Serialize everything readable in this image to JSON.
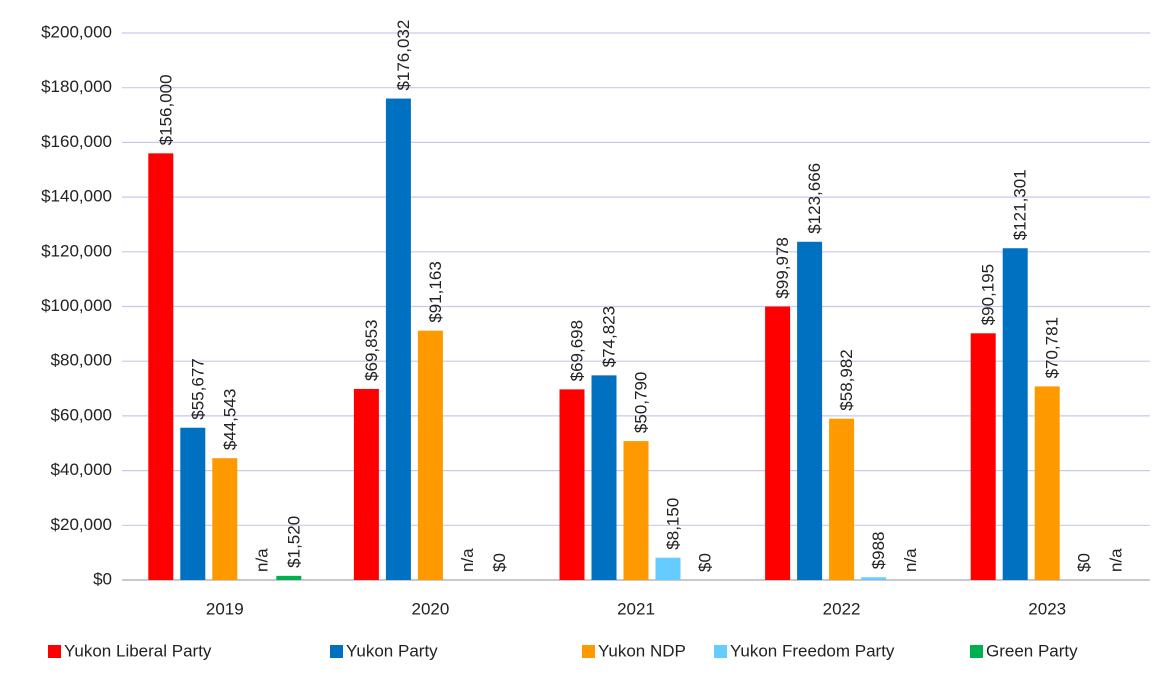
{
  "chart_data": {
    "type": "bar",
    "categories": [
      "2019",
      "2020",
      "2021",
      "2022",
      "2023"
    ],
    "series": [
      {
        "name": "Yukon Liberal Party",
        "color": "#ff0000",
        "values": [
          156000,
          69853,
          69698,
          99978,
          90195
        ],
        "value_labels": [
          "$156,000",
          "$69,853",
          "$69,698",
          "$99,978",
          "$90,195"
        ]
      },
      {
        "name": "Yukon Party",
        "color": "#0070c0",
        "values": [
          55677,
          176032,
          74823,
          123666,
          121301
        ],
        "value_labels": [
          "$55,677",
          "$176,032",
          "$74,823",
          "$123,666",
          "$121,301"
        ]
      },
      {
        "name": "Yukon NDP",
        "color": "#ff9900",
        "values": [
          44543,
          91163,
          50790,
          58982,
          70781
        ],
        "value_labels": [
          "$44,543",
          "$91,163",
          "$50,790",
          "$58,982",
          "$70,781"
        ]
      },
      {
        "name": "Yukon Freedom Party",
        "color": "#66ccff",
        "values": [
          null,
          null,
          8150,
          988,
          0
        ],
        "value_labels": [
          "n/a",
          "n/a",
          "$8,150",
          "$988",
          "$0"
        ]
      },
      {
        "name": "Green Party",
        "color": "#00b050",
        "values": [
          1520,
          0,
          0,
          null,
          null
        ],
        "value_labels": [
          "$1,520",
          "$0",
          "$0",
          "n/a",
          "n/a"
        ]
      }
    ],
    "ylim": [
      0,
      200000
    ],
    "yticks": [
      {
        "value": 0,
        "label": "$0"
      },
      {
        "value": 20000,
        "label": "$20,000"
      },
      {
        "value": 40000,
        "label": "$40,000"
      },
      {
        "value": 60000,
        "label": "$60,000"
      },
      {
        "value": 80000,
        "label": "$80,000"
      },
      {
        "value": 100000,
        "label": "$100,000"
      },
      {
        "value": 120000,
        "label": "$120,000"
      },
      {
        "value": 140000,
        "label": "$140,000"
      },
      {
        "value": 160000,
        "label": "$160,000"
      },
      {
        "value": 180000,
        "label": "$180,000"
      },
      {
        "value": 200000,
        "label": "$200,000"
      }
    ],
    "grid": true,
    "legend": "bottom"
  }
}
